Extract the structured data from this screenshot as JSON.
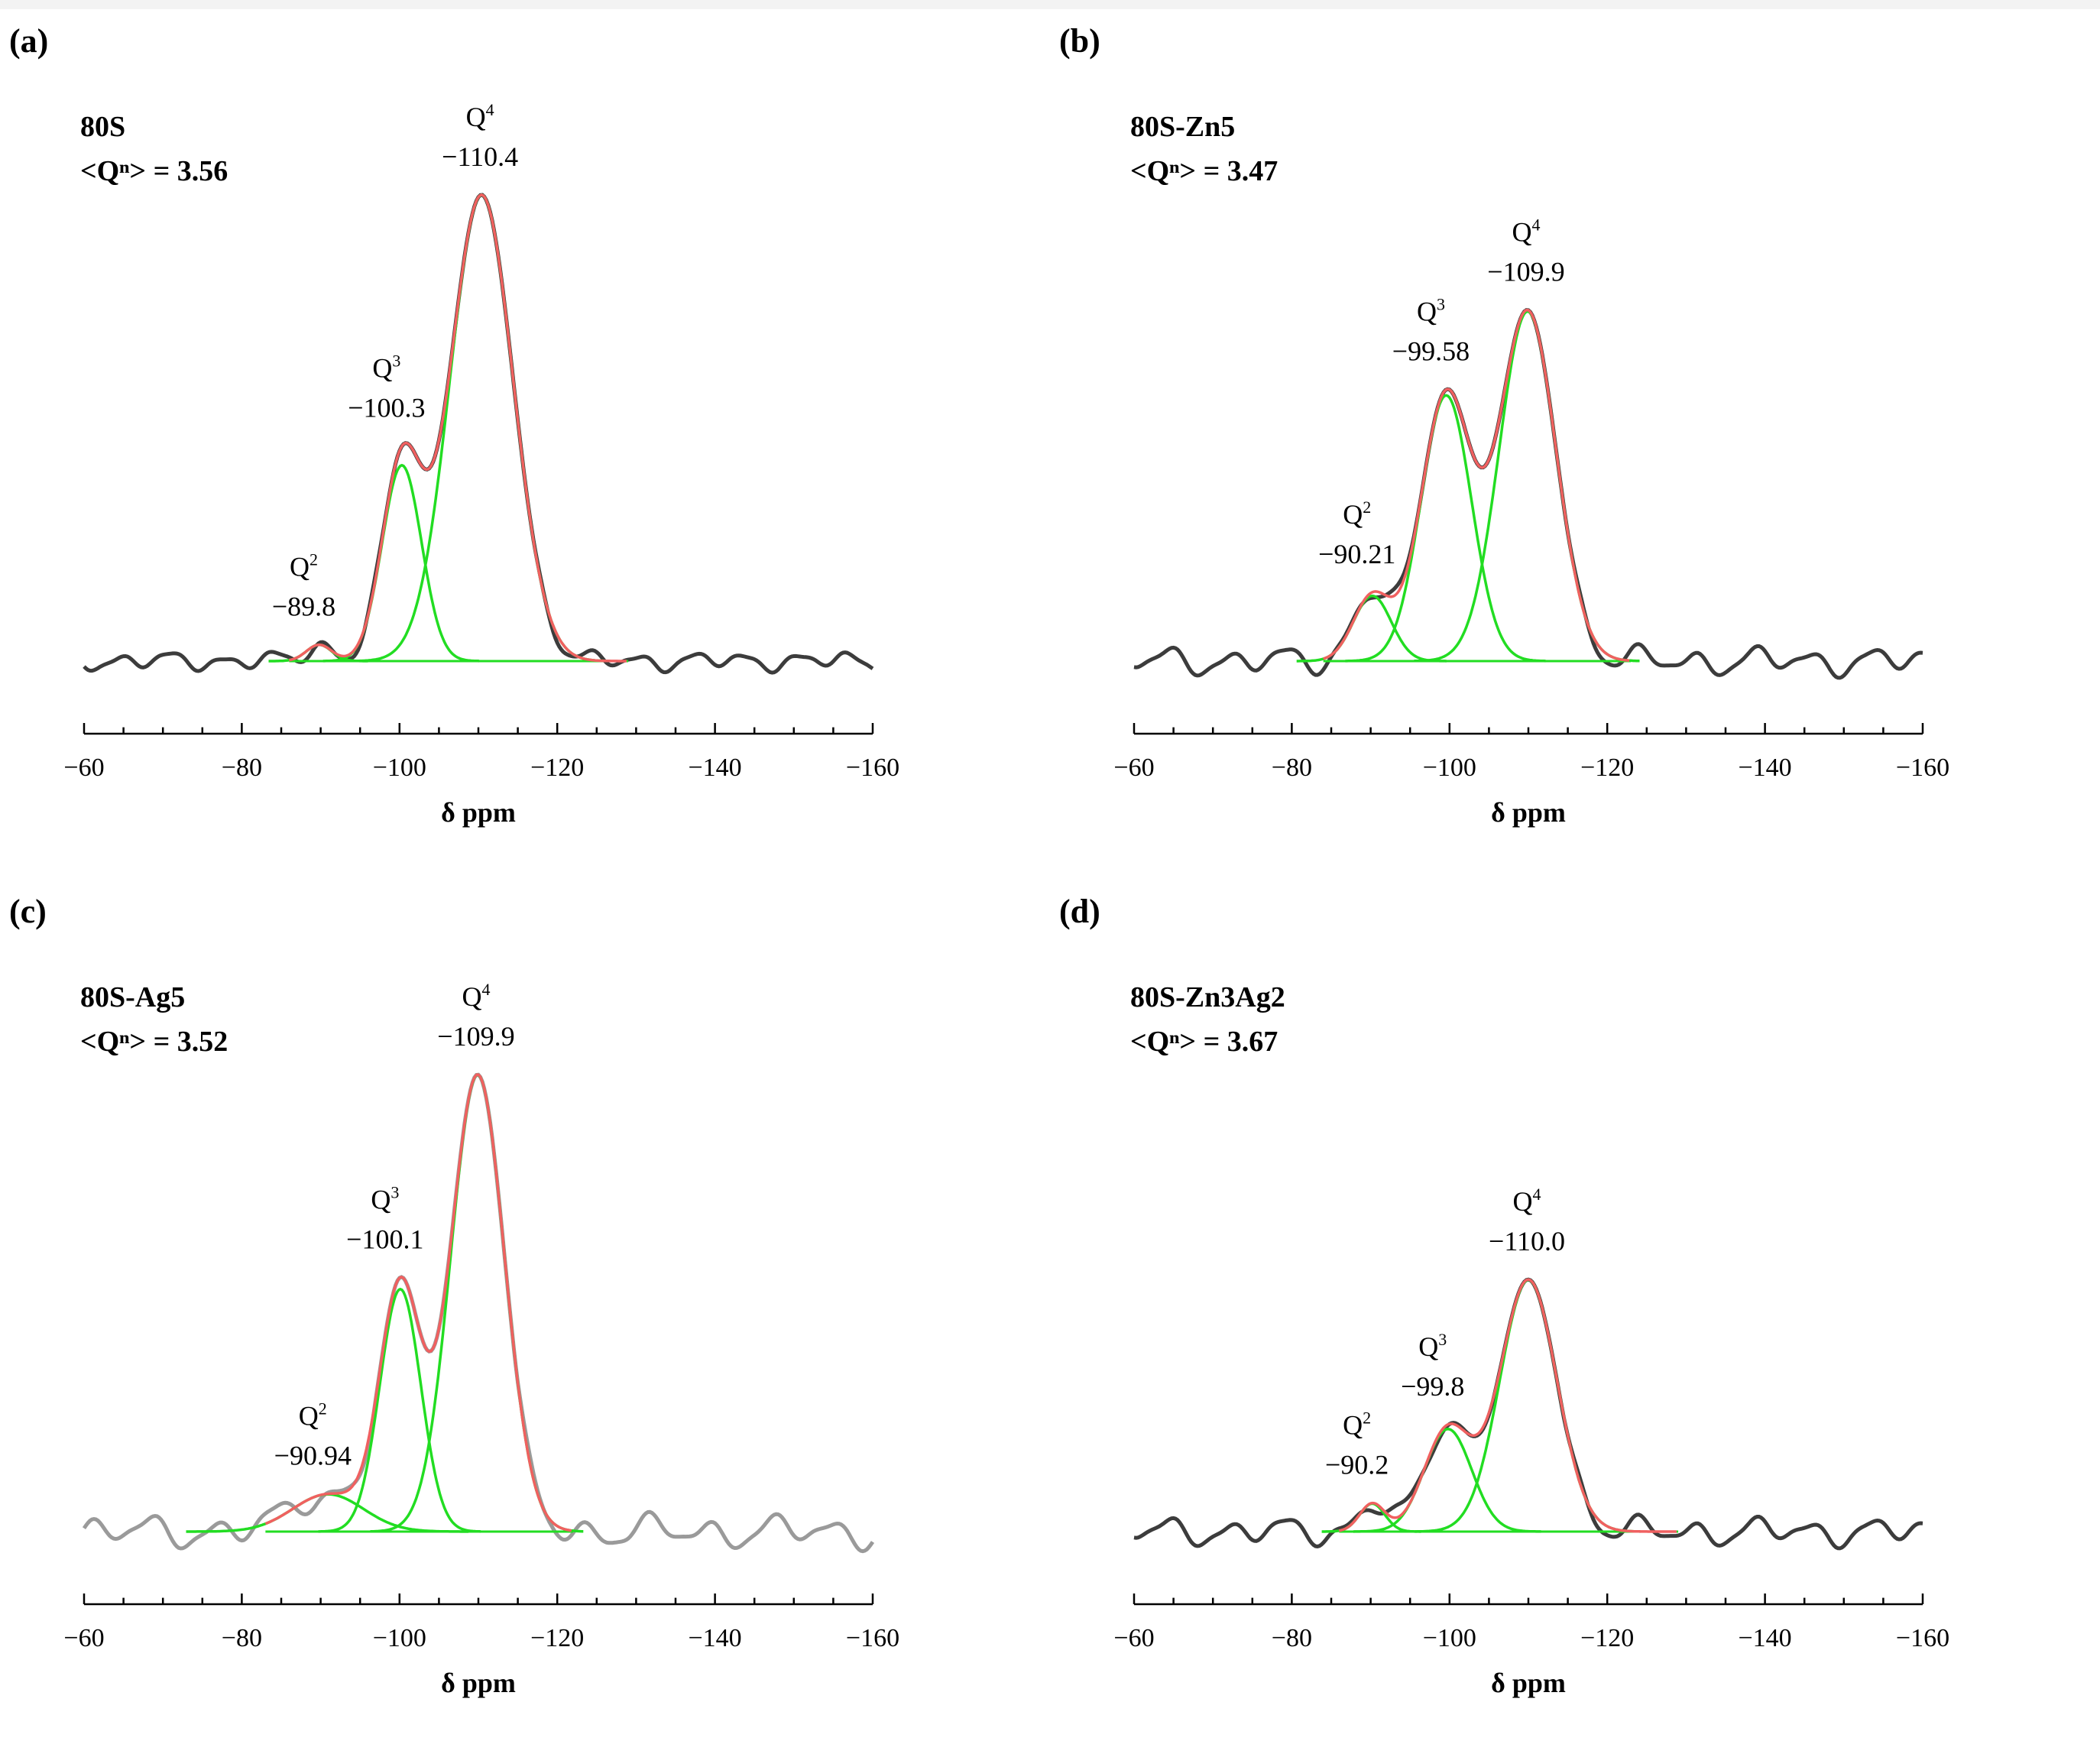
{
  "figure": {
    "colors": {
      "experimental": "#3c3c3c",
      "experimental_light": "#9a9a9a",
      "fit": "#f06060",
      "component": "#22dd22",
      "axis": "#000000",
      "text": "#000000"
    }
  },
  "chart_data": [
    {
      "type": "line",
      "panel_label": "(a)",
      "sample": "80S",
      "qn_label": "<Qⁿ> = ",
      "qn_value": "3.56",
      "xlabel": "δ ppm",
      "xlim": [
        -60,
        -160
      ],
      "xticks": [
        -60,
        -80,
        -100,
        -120,
        -140,
        -160
      ],
      "tick_labels": [
        "−60",
        "−80",
        "−100",
        "−120",
        "−140",
        "−160"
      ],
      "fit_range": [
        -86,
        -129
      ],
      "noise": {
        "amp": 0.02,
        "freq": 0.95
      },
      "experimental_style": "dark",
      "series": [
        {
          "name": "Q2",
          "center": -89.8,
          "height": 0.035,
          "width": 1.6,
          "label_q": "Q",
          "label_sup": "2",
          "label_shift": "−89.8"
        },
        {
          "name": "Q3",
          "center": -100.3,
          "height": 0.42,
          "width": 2.5,
          "label_q": "Q",
          "label_sup": "3",
          "label_shift": "−100.3"
        },
        {
          "name": "Q4",
          "center": -110.4,
          "height": 1.0,
          "width": 4.0,
          "label_q": "Q",
          "label_sup": "4",
          "label_shift": "−110.4"
        }
      ]
    },
    {
      "type": "line",
      "panel_label": "(b)",
      "sample": "80S-Zn5",
      "qn_label": "<Qⁿ> = ",
      "qn_value": "3.47",
      "xlabel": "δ ppm",
      "xlim": [
        -60,
        -160
      ],
      "xticks": [
        -60,
        -80,
        -100,
        -120,
        -140,
        -160
      ],
      "tick_labels": [
        "−60",
        "−80",
        "−100",
        "−120",
        "−140",
        "−160"
      ],
      "fit_range": [
        -84,
        -123
      ],
      "noise": {
        "amp": 0.03,
        "freq": 0.85
      },
      "experimental_style": "dark",
      "series": [
        {
          "name": "Q2",
          "center": -90.21,
          "height": 0.14,
          "width": 2.4,
          "label_q": "Q",
          "label_sup": "2",
          "label_shift": "−90.21"
        },
        {
          "name": "Q3",
          "center": -99.58,
          "height": 0.57,
          "width": 3.2,
          "label_q": "Q",
          "label_sup": "3",
          "label_shift": "−99.58"
        },
        {
          "name": "Q4",
          "center": -109.9,
          "height": 0.75,
          "width": 3.6,
          "label_q": "Q",
          "label_sup": "4",
          "label_shift": "−109.9"
        }
      ]
    },
    {
      "type": "line",
      "panel_label": "(c)",
      "sample": "80S-Ag5",
      "qn_label": "<Qⁿ> = ",
      "qn_value": "3.52",
      "xlabel": "δ ppm",
      "xlim": [
        -60,
        -160
      ],
      "xticks": [
        -60,
        -80,
        -100,
        -120,
        -140,
        -160
      ],
      "tick_labels": [
        "−60",
        "−80",
        "−100",
        "−120",
        "−140",
        "−160"
      ],
      "fit_range": [
        -83,
        -122
      ],
      "noise": {
        "amp": 0.035,
        "freq": 0.8
      },
      "experimental_style": "light",
      "series": [
        {
          "name": "Q2",
          "center": -90.94,
          "height": 0.08,
          "width": 4.5,
          "label_q": "Q",
          "label_sup": "2",
          "label_shift": "−90.94"
        },
        {
          "name": "Q3",
          "center": -100.1,
          "height": 0.52,
          "width": 2.6,
          "label_q": "Q",
          "label_sup": "3",
          "label_shift": "−100.1"
        },
        {
          "name": "Q4",
          "center": -109.9,
          "height": 0.98,
          "width": 3.4,
          "label_q": "Q",
          "label_sup": "4",
          "label_shift": "−109.9"
        }
      ]
    },
    {
      "type": "line",
      "panel_label": "(d)",
      "sample": "80S-Zn3Ag2",
      "qn_label": "<Qⁿ> = ",
      "qn_value": "3.67",
      "xlabel": "δ ppm",
      "xlim": [
        -60,
        -160
      ],
      "xticks": [
        -60,
        -80,
        -100,
        -120,
        -140,
        -160
      ],
      "tick_labels": [
        "−60",
        "−80",
        "−100",
        "−120",
        "−140",
        "−160"
      ],
      "fit_range": [
        -86,
        -129
      ],
      "noise": {
        "amp": 0.03,
        "freq": 0.85
      },
      "experimental_style": "dark",
      "series": [
        {
          "name": "Q2",
          "center": -90.2,
          "height": 0.06,
          "width": 1.6,
          "label_q": "Q",
          "label_sup": "2",
          "label_shift": "−90.2"
        },
        {
          "name": "Q3",
          "center": -99.8,
          "height": 0.22,
          "width": 3.0,
          "label_q": "Q",
          "label_sup": "3",
          "label_shift": "−99.8"
        },
        {
          "name": "Q4",
          "center": -110.0,
          "height": 0.54,
          "width": 3.6,
          "label_q": "Q",
          "label_sup": "4",
          "label_shift": "−110.0"
        }
      ]
    }
  ]
}
